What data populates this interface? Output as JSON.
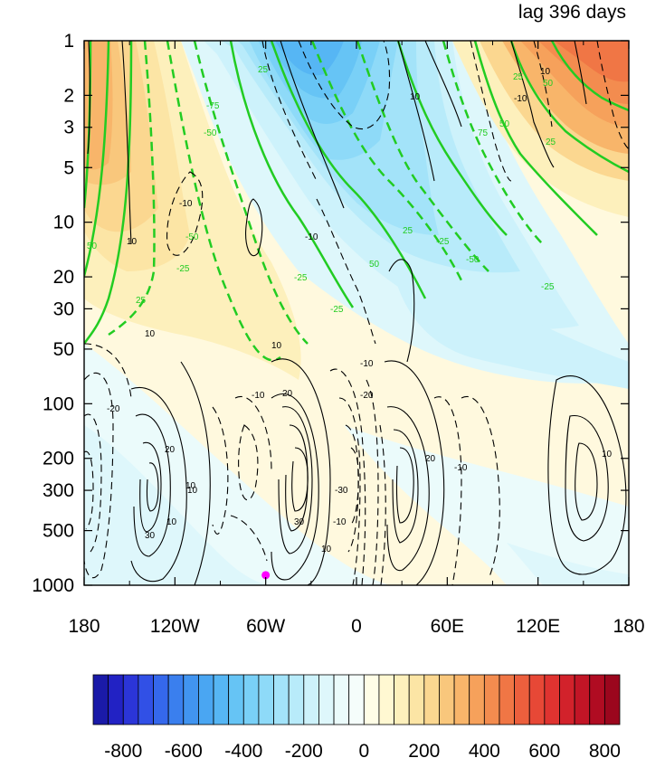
{
  "chart_data": {
    "type": "contour",
    "title_right": "lag 396 days",
    "x_axis": {
      "range": [
        -180,
        180
      ],
      "ticks": [
        -180,
        -120,
        -60,
        0,
        60,
        120,
        180
      ],
      "tick_labels": [
        "180",
        "120W",
        "60W",
        "0",
        "60E",
        "120E",
        "180"
      ]
    },
    "y_axis": {
      "scale": "log",
      "reversed": true,
      "range": [
        1000,
        1
      ],
      "ticks": [
        1,
        2,
        3,
        5,
        10,
        20,
        30,
        50,
        100,
        200,
        300,
        500,
        1000
      ],
      "tick_labels": [
        "1",
        "2",
        "3",
        "5",
        "10",
        "20",
        "30",
        "50",
        "100",
        "200",
        "300",
        "500",
        "1000"
      ]
    },
    "colorbar": {
      "levels": [
        -900,
        -850,
        -800,
        -750,
        -700,
        -650,
        -600,
        -550,
        -500,
        -450,
        -400,
        -350,
        -300,
        -250,
        -200,
        -150,
        -100,
        -50,
        0,
        50,
        100,
        150,
        200,
        250,
        300,
        350,
        400,
        450,
        500,
        550,
        600,
        650,
        700,
        750,
        800,
        850
      ],
      "label_values": [
        -800,
        -600,
        -400,
        -200,
        0,
        200,
        400,
        600,
        800
      ],
      "tick_labels": [
        "-800",
        "-600",
        "-400",
        "-200",
        "0",
        "200",
        "400",
        "600",
        "800"
      ],
      "colors": [
        "#1a1aa8",
        "#2222c4",
        "#2b35d8",
        "#3150e6",
        "#3568ec",
        "#3a7fee",
        "#4194f0",
        "#4aa6f2",
        "#56b6f4",
        "#66c4f5",
        "#79d0f7",
        "#8edaf8",
        "#a3e3f9",
        "#b8ebfa",
        "#cdf2fb",
        "#def7fb",
        "#ebfbfb",
        "#f5fdfb",
        "#fffde6",
        "#fff8d2",
        "#fdf0bc",
        "#fce5a5",
        "#fbd790",
        "#f9c77c",
        "#f8b56a",
        "#f6a15b",
        "#f38c4f",
        "#f07645",
        "#ec5f3d",
        "#e74836",
        "#df3330",
        "#d2222b",
        "#c21526",
        "#b00c22",
        "#9b061d"
      ]
    },
    "black_contour_labels": [
      "10",
      "-10",
      "20",
      "-20",
      "30",
      "-30"
    ],
    "green_contour_labels": [
      "25",
      "-25",
      "50",
      "-50",
      "75",
      "-75"
    ],
    "marker": {
      "lon": -60,
      "pressure": 880,
      "color": "#ff00ff"
    }
  }
}
